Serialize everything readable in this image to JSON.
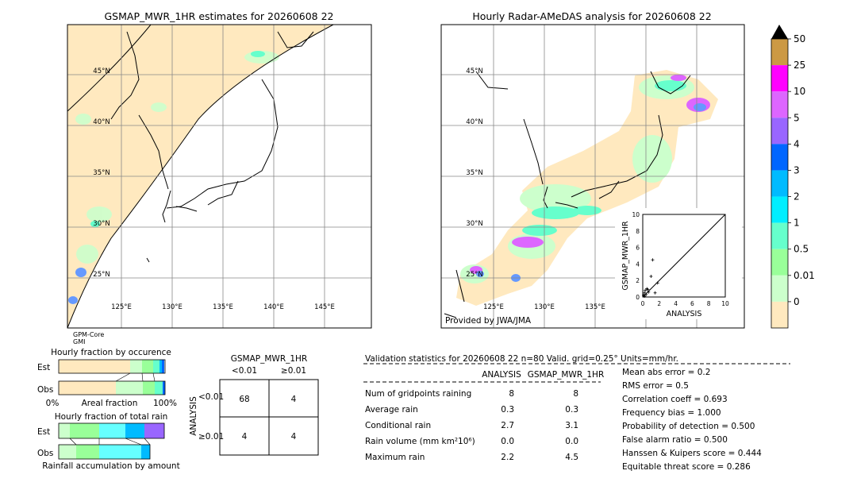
{
  "left_map": {
    "title": "GSMAP_MWR_1HR estimates for 20260608 22",
    "lat_labels": [
      "45°N",
      "40°N",
      "35°N",
      "30°N",
      "25°N"
    ],
    "lon_labels": [
      "125°E",
      "130°E",
      "135°E",
      "140°E",
      "145°E"
    ],
    "footnote": [
      "GPM-Core",
      "GMI"
    ]
  },
  "right_map": {
    "title": "Hourly Radar-AMeDAS analysis for 20260608 22",
    "lat_labels": [
      "45°N",
      "40°N",
      "35°N",
      "30°N",
      "25°N"
    ],
    "lon_labels": [
      "125°E",
      "130°E",
      "135°E"
    ],
    "credit": "Provided by JWA/JMA"
  },
  "scatter_inset": {
    "xlabel": "ANALYSIS",
    "ylabel": "GSMAP_MWR_1HR",
    "ticks": [
      "0",
      "2",
      "4",
      "6",
      "8",
      "10"
    ]
  },
  "colorbar": {
    "labels": [
      "50",
      "25",
      "10",
      "5",
      "4",
      "3",
      "2",
      "1",
      "0.5",
      "0.01",
      "0"
    ],
    "colors": [
      "#cc9944",
      "#ff00ff",
      "#dd66ff",
      "#9966ff",
      "#0066ff",
      "#00bbff",
      "#00eeff",
      "#66ffcc",
      "#99ff99",
      "#ccffcc",
      "#ffe9bf"
    ]
  },
  "fraction_occurrence": {
    "title": "Hourly fraction by occurence",
    "rows": [
      "Est",
      "Obs"
    ],
    "axis_left": "0%",
    "axis_mid": "Areal fraction",
    "axis_right": "100%"
  },
  "fraction_total": {
    "title": "Hourly fraction of total rain",
    "rows": [
      "Est",
      "Obs"
    ],
    "footer": "Rainfall accumulation by amount"
  },
  "contingency": {
    "title": "GSMAP_MWR_1HR",
    "col_headers": [
      "<0.01",
      "≥0.01"
    ],
    "row_axis": "ANALYSIS",
    "row_headers": [
      "<0.01",
      "≥0.01"
    ],
    "cells": [
      [
        "68",
        "4"
      ],
      [
        "4",
        "4"
      ]
    ]
  },
  "validation": {
    "header": "Validation statistics for 20260608 22  n=80 Valid. grid=0.25° Units=mm/hr.",
    "col_analysis": "ANALYSIS",
    "col_gsmap": "GSMAP_MWR_1HR",
    "rows": [
      {
        "label": "Num of gridpoints raining",
        "a": "8",
        "g": "8"
      },
      {
        "label": "Average rain",
        "a": "0.3",
        "g": "0.3"
      },
      {
        "label": "Conditional rain",
        "a": "2.7",
        "g": "3.1"
      },
      {
        "label": "Rain volume (mm km²10⁶)",
        "a": "0.0",
        "g": "0.0"
      },
      {
        "label": "Maximum rain",
        "a": "2.2",
        "g": "4.5"
      }
    ],
    "scores": [
      "Mean abs error =    0.2",
      "RMS error =    0.5",
      "Correlation coeff =  0.693",
      "Frequency bias =  1.000",
      "Probability of detection =  0.500",
      "False alarm ratio =  0.500",
      "Hanssen & Kuipers score =  0.444",
      "Equitable threat score =  0.286"
    ]
  },
  "chart_data": {
    "type": "scatter",
    "xlim": [
      0,
      10
    ],
    "ylim": [
      0,
      10
    ],
    "points": [
      [
        0.1,
        0.2
      ],
      [
        0.2,
        0.5
      ],
      [
        0.3,
        0.8
      ],
      [
        0.5,
        1.0
      ],
      [
        0.7,
        0.6
      ],
      [
        1.0,
        2.5
      ],
      [
        1.2,
        4.5
      ],
      [
        1.5,
        0.5
      ],
      [
        1.8,
        1.7
      ],
      [
        0.4,
        0.3
      ],
      [
        0.6,
        0.9
      ],
      [
        0.2,
        0.1
      ]
    ]
  }
}
